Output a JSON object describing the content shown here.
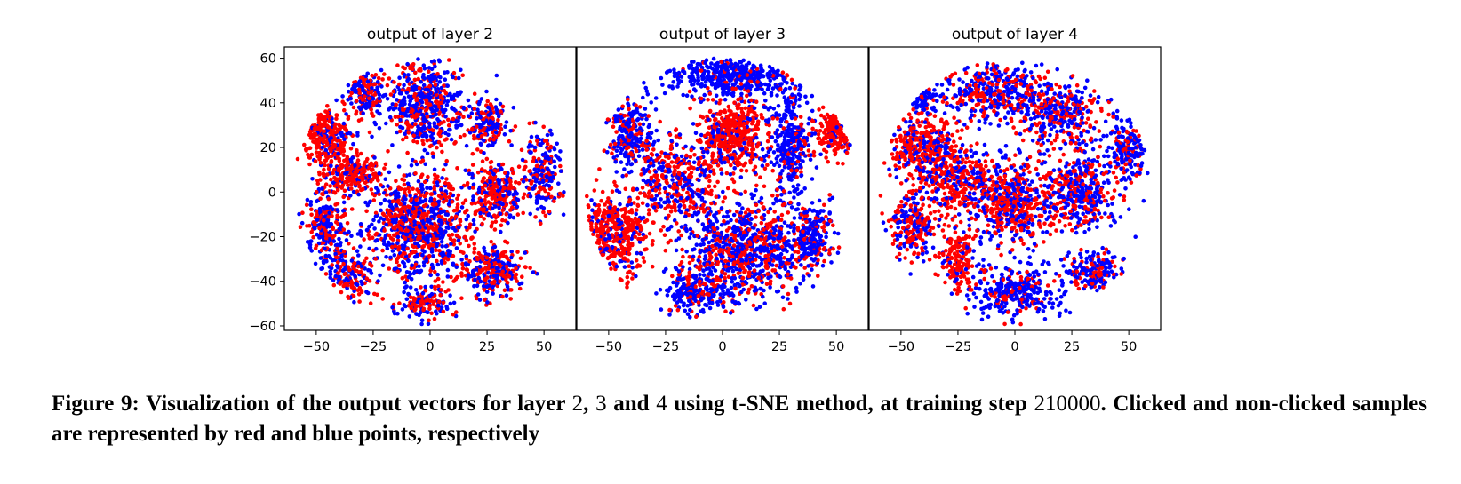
{
  "chart_data": [
    {
      "type": "scatter",
      "title": "output of layer 2",
      "xlabel": "",
      "ylabel": "",
      "xlim": [
        -64,
        64
      ],
      "ylim": [
        -62,
        65
      ],
      "xticks": [
        "−50",
        "−25",
        "0",
        "25",
        "50"
      ],
      "xtick_values": [
        -50,
        -25,
        0,
        25,
        50
      ],
      "yticks": [
        "60",
        "40",
        "20",
        "0",
        "−20",
        "−40",
        "−60"
      ],
      "ytick_values": [
        60,
        40,
        20,
        0,
        -20,
        -40,
        -60
      ],
      "series": [
        {
          "color": "#ff0000",
          "values_note": "clicked"
        },
        {
          "color": "#0000ff",
          "values_note": "non-clicked"
        }
      ],
      "clusters": [
        {
          "center": [
            -2,
            40
          ],
          "radius": [
            16,
            18
          ],
          "red_share": 0.4,
          "n": 520
        },
        {
          "center": [
            -28,
            44
          ],
          "radius": [
            8,
            10
          ],
          "red_share": 0.45,
          "n": 180
        },
        {
          "center": [
            -45,
            25
          ],
          "radius": [
            10,
            12
          ],
          "red_share": 0.8,
          "n": 260
        },
        {
          "center": [
            -35,
            8
          ],
          "radius": [
            12,
            8
          ],
          "red_share": 0.75,
          "n": 220
        },
        {
          "center": [
            -45,
            -15
          ],
          "radius": [
            8,
            18
          ],
          "red_share": 0.5,
          "n": 260
        },
        {
          "center": [
            -35,
            -38
          ],
          "radius": [
            8,
            10
          ],
          "red_share": 0.55,
          "n": 140
        },
        {
          "center": [
            -5,
            -15
          ],
          "radius": [
            22,
            22
          ],
          "red_share": 0.5,
          "n": 900
        },
        {
          "center": [
            30,
            0
          ],
          "radius": [
            10,
            12
          ],
          "red_share": 0.65,
          "n": 280
        },
        {
          "center": [
            28,
            -35
          ],
          "radius": [
            12,
            12
          ],
          "red_share": 0.55,
          "n": 260
        },
        {
          "center": [
            50,
            10
          ],
          "radius": [
            8,
            18
          ],
          "red_share": 0.4,
          "n": 200
        },
        {
          "center": [
            25,
            30
          ],
          "radius": [
            8,
            10
          ],
          "red_share": 0.4,
          "n": 160
        },
        {
          "center": [
            -2,
            -50
          ],
          "radius": [
            10,
            6
          ],
          "red_share": 0.5,
          "n": 140
        }
      ]
    },
    {
      "type": "scatter",
      "title": "output of layer 3",
      "xlabel": "",
      "ylabel": "",
      "xlim": [
        -64,
        64
      ],
      "ylim": [
        -62,
        65
      ],
      "xticks": [
        "−50",
        "−25",
        "0",
        "25",
        "50"
      ],
      "xtick_values": [
        -50,
        -25,
        0,
        25,
        50
      ],
      "yticks": [],
      "ytick_values": [],
      "series": [
        {
          "color": "#ff0000",
          "values_note": "clicked"
        },
        {
          "color": "#0000ff",
          "values_note": "non-clicked"
        }
      ],
      "clusters": [
        {
          "center": [
            5,
            52
          ],
          "radius": [
            28,
            9
          ],
          "red_share": 0.1,
          "n": 420
        },
        {
          "center": [
            5,
            25
          ],
          "radius": [
            14,
            16
          ],
          "red_share": 0.8,
          "n": 480
        },
        {
          "center": [
            -40,
            25
          ],
          "radius": [
            10,
            14
          ],
          "red_share": 0.35,
          "n": 240
        },
        {
          "center": [
            -48,
            -20
          ],
          "radius": [
            14,
            18
          ],
          "red_share": 0.8,
          "n": 420
        },
        {
          "center": [
            -20,
            5
          ],
          "radius": [
            16,
            18
          ],
          "red_share": 0.55,
          "n": 380
        },
        {
          "center": [
            30,
            20
          ],
          "radius": [
            8,
            24
          ],
          "red_share": 0.2,
          "n": 300
        },
        {
          "center": [
            50,
            28
          ],
          "radius": [
            8,
            10
          ],
          "red_share": 0.85,
          "n": 160
        },
        {
          "center": [
            10,
            -25
          ],
          "radius": [
            26,
            20
          ],
          "red_share": 0.4,
          "n": 900
        },
        {
          "center": [
            -10,
            -45
          ],
          "radius": [
            14,
            8
          ],
          "red_share": 0.3,
          "n": 220
        },
        {
          "center": [
            40,
            -20
          ],
          "radius": [
            8,
            14
          ],
          "red_share": 0.3,
          "n": 200
        }
      ]
    },
    {
      "type": "scatter",
      "title": "output of layer 4",
      "xlabel": "",
      "ylabel": "",
      "xlim": [
        -64,
        64
      ],
      "ylim": [
        -62,
        65
      ],
      "xticks": [
        "−50",
        "−25",
        "0",
        "25",
        "50"
      ],
      "xtick_values": [
        -50,
        -25,
        0,
        25,
        50
      ],
      "yticks": [],
      "ytick_values": [],
      "series": [
        {
          "color": "#ff0000",
          "values_note": "clicked"
        },
        {
          "color": "#0000ff",
          "values_note": "non-clicked"
        }
      ],
      "clusters": [
        {
          "center": [
            -10,
            45
          ],
          "radius": [
            20,
            12
          ],
          "red_share": 0.45,
          "n": 360
        },
        {
          "center": [
            20,
            35
          ],
          "radius": [
            18,
            14
          ],
          "red_share": 0.4,
          "n": 360
        },
        {
          "center": [
            -40,
            20
          ],
          "radius": [
            14,
            14
          ],
          "red_share": 0.7,
          "n": 360
        },
        {
          "center": [
            -25,
            5
          ],
          "radius": [
            16,
            14
          ],
          "red_share": 0.6,
          "n": 340
        },
        {
          "center": [
            -45,
            -15
          ],
          "radius": [
            10,
            14
          ],
          "red_share": 0.6,
          "n": 240
        },
        {
          "center": [
            -25,
            -30
          ],
          "radius": [
            8,
            12
          ],
          "red_share": 0.85,
          "n": 180
        },
        {
          "center": [
            0,
            -5
          ],
          "radius": [
            16,
            18
          ],
          "red_share": 0.55,
          "n": 520
        },
        {
          "center": [
            30,
            0
          ],
          "radius": [
            14,
            16
          ],
          "red_share": 0.4,
          "n": 380
        },
        {
          "center": [
            50,
            20
          ],
          "radius": [
            8,
            12
          ],
          "red_share": 0.35,
          "n": 180
        },
        {
          "center": [
            0,
            -45
          ],
          "radius": [
            18,
            10
          ],
          "red_share": 0.25,
          "n": 320
        },
        {
          "center": [
            35,
            -35
          ],
          "radius": [
            12,
            8
          ],
          "red_share": 0.35,
          "n": 180
        },
        {
          "center": [
            -40,
            42
          ],
          "radius": [
            6,
            6
          ],
          "red_share": 0.1,
          "n": 60
        }
      ]
    }
  ],
  "caption": {
    "label": "Figure 9:",
    "p1": " Visualization of the output vectors for layer ",
    "n1": "2",
    "p2": ", ",
    "n2": "3",
    "p3": " and ",
    "n3": "4",
    "p4": " using t-SNE method, at training step ",
    "n4": "210000",
    "p5": ". Clicked and non-clicked samples are represented by red and blue points, respectively"
  }
}
